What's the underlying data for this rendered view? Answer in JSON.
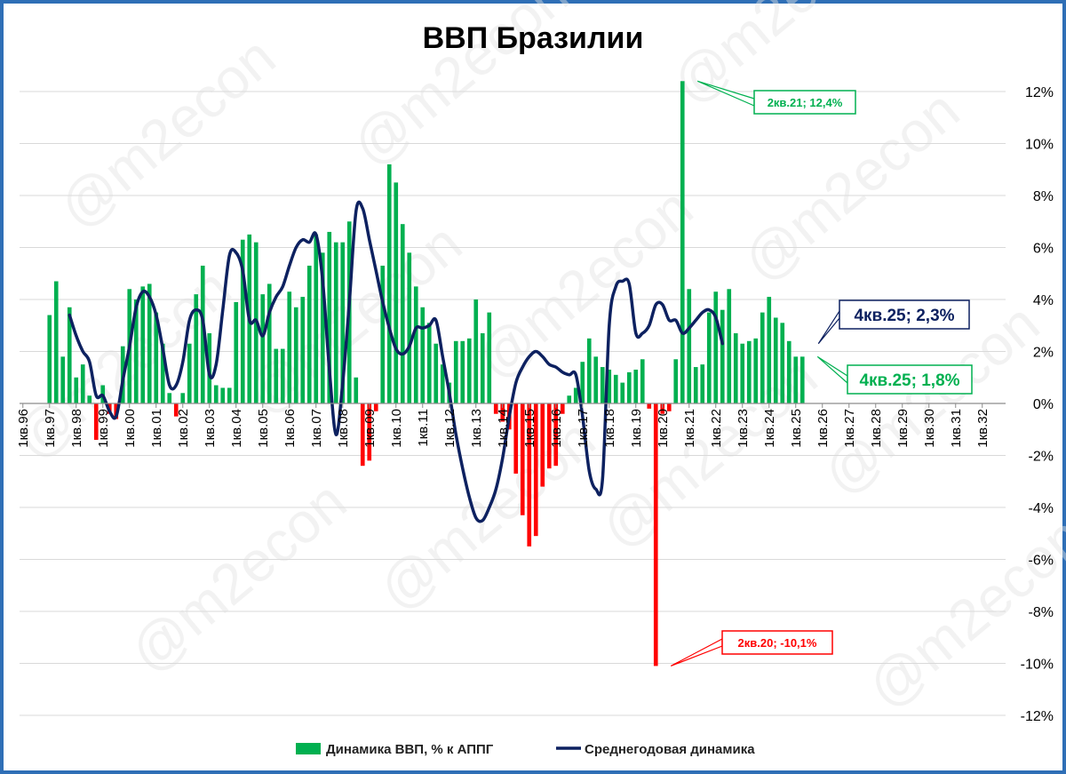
{
  "chart_data": {
    "type": "bar",
    "title": "ВВП Бразилии",
    "watermark": "@m2econ",
    "x_tick_labels": [
      "1кв.96",
      "1кв.97",
      "1кв.98",
      "1кв.99",
      "1кв.00",
      "1кв.01",
      "1кв.02",
      "1кв.03",
      "1кв.04",
      "1кв.05",
      "1кв.06",
      "1кв.07",
      "1кв.08",
      "1кв.09",
      "1кв.10",
      "1кв.11",
      "1кв.12",
      "1кв.13",
      "1кв.14",
      "1кв.15",
      "1кв.16",
      "1кв.17",
      "1кв.18",
      "1кв.19",
      "1кв.20",
      "1кв.21",
      "1кв.22",
      "1кв.23",
      "1кв.24",
      "1кв.25",
      "1кв.26",
      "1кв.27",
      "1кв.28",
      "1кв.29",
      "1кв.30",
      "1кв.31",
      "1кв.32"
    ],
    "y_ticks": [
      12,
      10,
      8,
      6,
      4,
      2,
      0,
      -2,
      -4,
      -6,
      -8,
      -10,
      -12
    ],
    "y_tick_labels": [
      "12%",
      "10%",
      "8%",
      "6%",
      "4%",
      "2%",
      "0%",
      "-2%",
      "-4%",
      "-6%",
      "-8%",
      "-10%",
      "-12%"
    ],
    "ylim": [
      -12,
      12
    ],
    "grid": true,
    "legend_position": "bottom",
    "colors": {
      "positive_bar": "#00b050",
      "negative_bar": "#ff0000",
      "line": "#0d2160",
      "border": "#2f6fb6"
    },
    "series": [
      {
        "name": "Динамика ВВП, % к АППГ",
        "start_quarter": "1кв.97",
        "values": [
          3.4,
          4.7,
          1.8,
          3.7,
          1.0,
          1.5,
          0.3,
          -1.4,
          0.7,
          -0.4,
          -0.6,
          2.2,
          4.4,
          4.0,
          4.5,
          4.6,
          3.5,
          2.3,
          0.4,
          -0.5,
          0.4,
          2.3,
          4.2,
          5.3,
          2.7,
          0.7,
          0.6,
          0.6,
          3.9,
          6.3,
          6.5,
          6.2,
          4.2,
          4.6,
          2.1,
          2.1,
          4.3,
          3.7,
          4.1,
          5.3,
          6.5,
          5.8,
          6.6,
          6.2,
          6.2,
          7.0,
          1.0,
          -2.4,
          -2.2,
          -0.3,
          5.3,
          9.2,
          8.5,
          6.9,
          5.8,
          4.5,
          3.7,
          3.1,
          2.3,
          1.5,
          0.8,
          2.4,
          2.4,
          2.5,
          4.0,
          2.7,
          3.5,
          -0.4,
          -0.7,
          -1.0,
          -2.7,
          -4.3,
          -5.5,
          -5.1,
          -3.2,
          -2.5,
          -2.4,
          -0.4,
          0.3,
          0.6,
          1.6,
          2.5,
          1.8,
          1.4,
          1.3,
          1.1,
          0.8,
          1.2,
          1.3,
          1.7,
          -0.2,
          -10.1,
          -0.4,
          -0.3,
          1.7,
          12.4,
          4.4,
          1.4,
          1.5,
          3.5,
          4.3,
          3.6,
          4.4,
          2.7,
          2.3,
          2.4,
          2.5,
          3.5,
          4.1,
          3.3,
          3.1,
          2.4,
          1.8,
          1.8
        ]
      },
      {
        "name": "Среднегодовая динамика",
        "start_quarter": "4кв.97",
        "values": [
          3.4,
          2.6,
          2.0,
          1.6,
          0.3,
          0.3,
          -0.3,
          -0.5,
          0.9,
          2.2,
          3.7,
          4.3,
          4.1,
          3.4,
          2.1,
          0.7,
          0.7,
          1.6,
          3.2,
          3.6,
          3.2,
          1.1,
          1.5,
          3.6,
          5.7,
          5.8,
          5.1,
          3.2,
          3.2,
          2.6,
          3.5,
          4.1,
          4.5,
          5.3,
          6.0,
          6.3,
          6.2,
          6.5,
          4.7,
          1.3,
          -1.2,
          0.8,
          3.9,
          7.4,
          7.5,
          6.3,
          5.1,
          3.9,
          2.9,
          2.1,
          1.9,
          2.2,
          2.9,
          2.9,
          3.0,
          3.2,
          1.8,
          0.4,
          -1.2,
          -2.5,
          -3.6,
          -4.4,
          -4.5,
          -4.0,
          -3.3,
          -2.1,
          -0.5,
          0.8,
          1.4,
          1.8,
          2.0,
          1.8,
          1.5,
          1.4,
          1.2,
          1.1,
          1.1,
          -0.5,
          -2.6,
          -3.3,
          -2.9,
          3.0,
          4.5,
          4.7,
          4.6,
          2.7,
          2.7,
          3.0,
          3.8,
          3.8,
          3.2,
          3.2,
          2.7,
          2.9,
          3.2,
          3.5,
          3.6,
          3.3,
          2.3
        ]
      }
    ],
    "annotations": [
      {
        "text": "2кв.21; 12,4%",
        "quarter": "2кв.21",
        "value": 12.4,
        "color": "#00b050"
      },
      {
        "text": "2кв.20; -10,1%",
        "quarter": "2кв.20",
        "value": -10.1,
        "color": "#ff0000"
      },
      {
        "text": "4кв.25; 2,3%",
        "quarter": "4кв.25",
        "value": 2.3,
        "color": "#0d2160"
      },
      {
        "text": "4кв.25; 1,8%",
        "quarter": "4кв.25",
        "value": 1.8,
        "color": "#00b050"
      }
    ]
  }
}
